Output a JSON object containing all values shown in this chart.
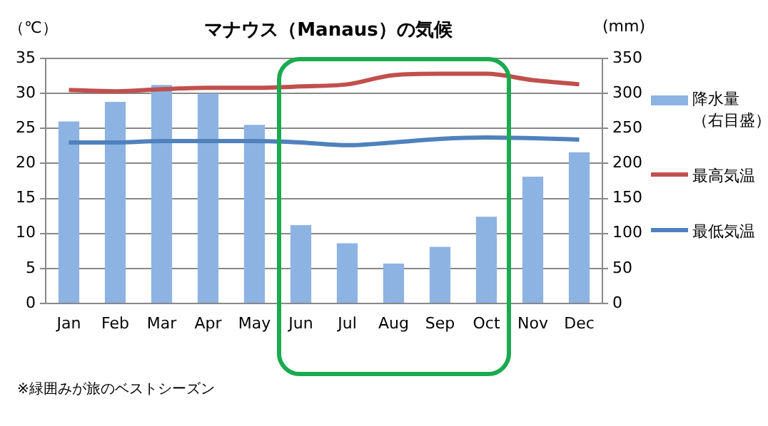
{
  "chart_data": {
    "type": "bar",
    "title": "マナウス（Manaus）の気候",
    "ylabel": "（℃）",
    "y2label": "(mm)",
    "categories": [
      "Jan",
      "Feb",
      "Mar",
      "Apr",
      "May",
      "Jun",
      "Jul",
      "Aug",
      "Sep",
      "Oct",
      "Nov",
      "Dec"
    ],
    "series": [
      {
        "name": "降水量（右目盛）",
        "axis": "y2",
        "color": "#8db3e2",
        "values": [
          260,
          288,
          312,
          300,
          255,
          112,
          86,
          57,
          81,
          124,
          181,
          216
        ]
      },
      {
        "name": "最高気温",
        "type": "line",
        "color": "#c0504d",
        "values": [
          30.5,
          30.3,
          30.6,
          30.8,
          30.8,
          31.0,
          31.3,
          32.6,
          32.8,
          32.8,
          31.9,
          31.3
        ]
      },
      {
        "name": "最低気温",
        "type": "line",
        "color": "#4f81bd",
        "values": [
          23.0,
          23.0,
          23.2,
          23.2,
          23.2,
          23.0,
          22.6,
          23.0,
          23.5,
          23.7,
          23.6,
          23.4
        ]
      }
    ],
    "ylim": [
      0,
      35
    ],
    "yticks": [
      0,
      5,
      10,
      15,
      20,
      25,
      30,
      35
    ],
    "y2lim": [
      0,
      350
    ],
    "y2ticks": [
      0,
      50,
      100,
      150,
      200,
      250,
      300,
      350
    ],
    "grid": "y",
    "legend": "right",
    "marker": "none",
    "annotations": [
      "※緑囲みが旅のベストシーズン"
    ]
  }
}
